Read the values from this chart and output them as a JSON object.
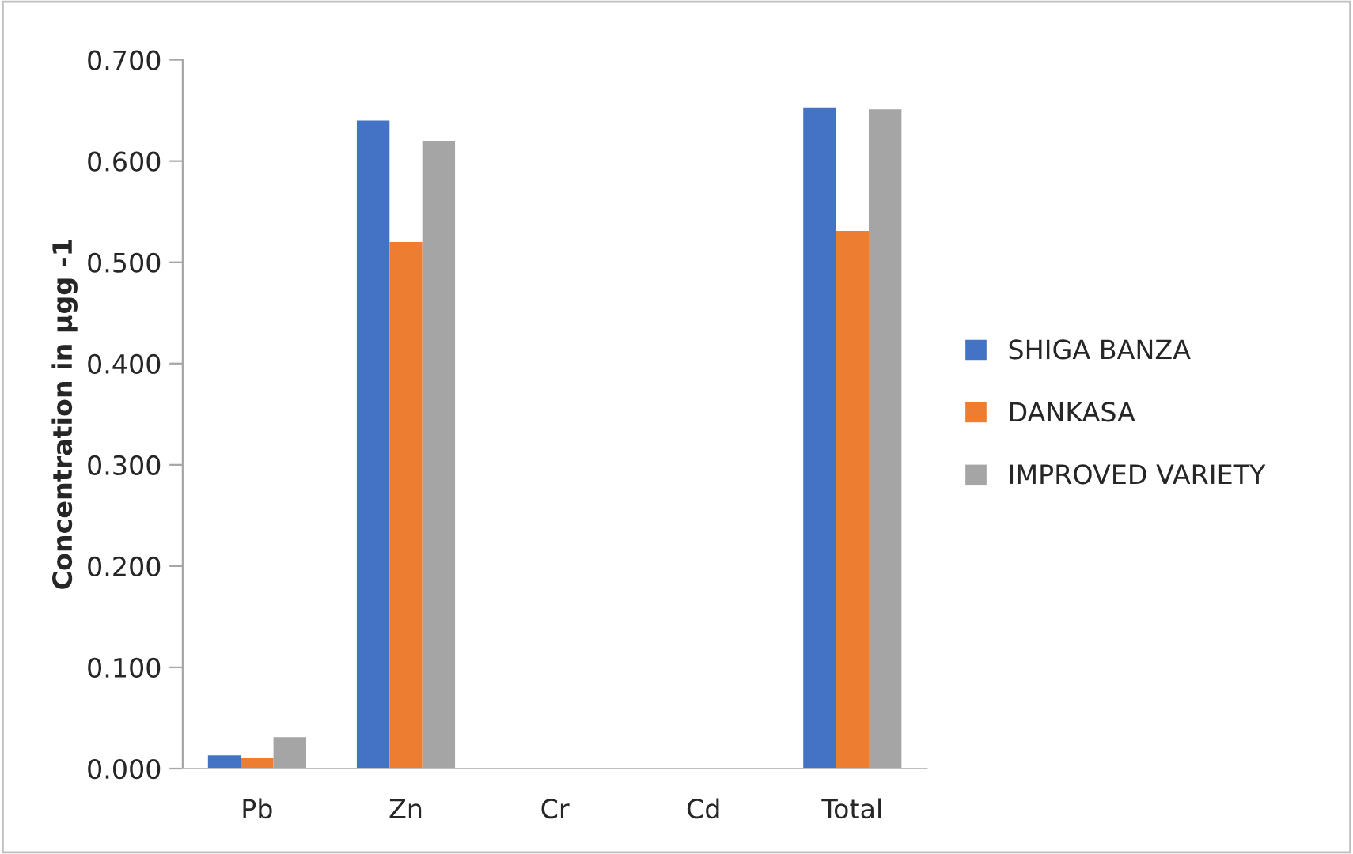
{
  "chart_data": {
    "type": "bar",
    "ylabel": "Concentration in µgg -1",
    "categories": [
      "Pb",
      "Zn",
      "Cr",
      "Cd",
      "Total"
    ],
    "series": [
      {
        "name": "SHIGA BANZA",
        "color": "#4472c4",
        "values": [
          0.013,
          0.64,
          0,
          0,
          0.653
        ]
      },
      {
        "name": "DANKASA",
        "color": "#ed7d31",
        "values": [
          0.011,
          0.52,
          0,
          0,
          0.531
        ]
      },
      {
        "name": "IMPROVED VARIETY",
        "color": "#a5a5a5",
        "values": [
          0.031,
          0.62,
          0,
          0,
          0.651
        ]
      }
    ],
    "ylim": [
      0,
      0.7
    ],
    "yticks": [
      {
        "value": 0,
        "label": "0.000"
      },
      {
        "value": 0.1,
        "label": "0.100"
      },
      {
        "value": 0.2,
        "label": "0.200"
      },
      {
        "value": 0.3,
        "label": "0.300"
      },
      {
        "value": 0.4,
        "label": "0.400"
      },
      {
        "value": 0.5,
        "label": "0.500"
      },
      {
        "value": 0.6,
        "label": "0.600"
      },
      {
        "value": 0.7,
        "label": "0.700"
      }
    ],
    "grid": false,
    "legend": "right"
  }
}
